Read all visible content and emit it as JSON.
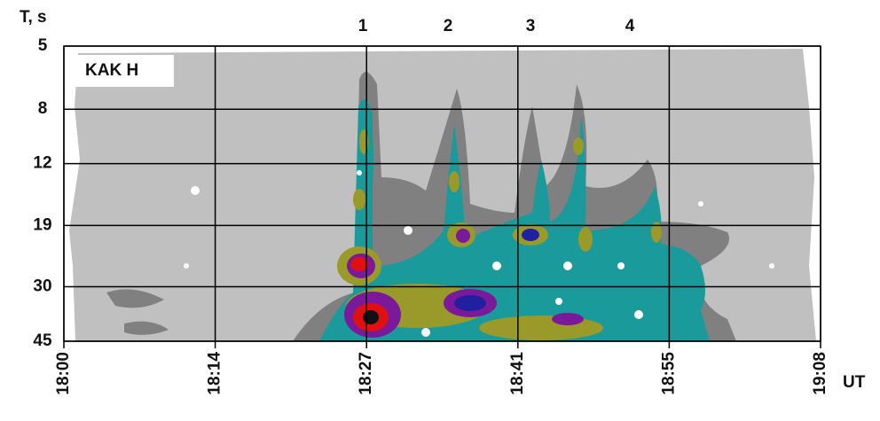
{
  "chart_data": {
    "type": "spectrogram",
    "ylabel": "T, s",
    "xlabel": "UT",
    "station_label": "KAK H",
    "annotations": [
      "1",
      "2",
      "3",
      "4"
    ],
    "xticks": [
      "18:00",
      "18:14",
      "18:27",
      "18:41",
      "18:55",
      "19:08"
    ],
    "ylim": [
      5,
      45
    ],
    "yticks": [
      5,
      8,
      12,
      19,
      30,
      45
    ],
    "ylog": true,
    "grid": true
  }
}
